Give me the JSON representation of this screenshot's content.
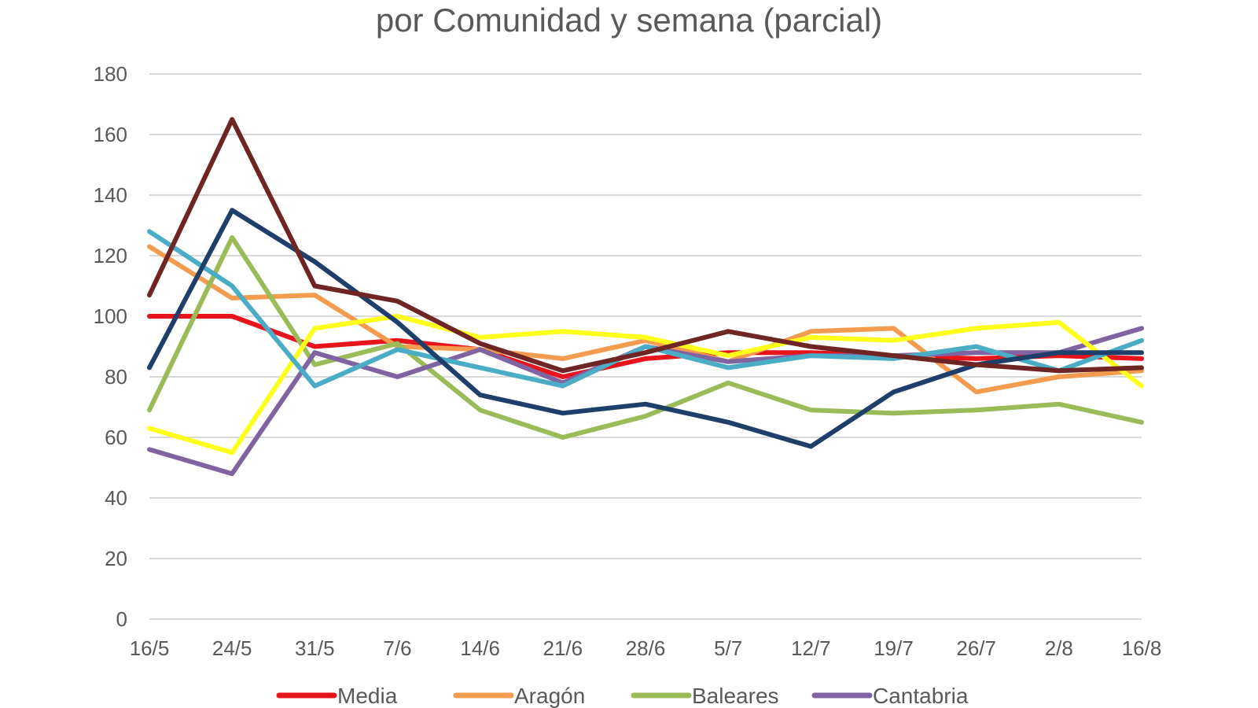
{
  "chart_data": {
    "type": "line",
    "title": "por Comunidad y semana (parcial)",
    "xlabel": "",
    "ylabel": "",
    "ylim": [
      0,
      180
    ],
    "yticks": [
      0,
      20,
      40,
      60,
      80,
      100,
      120,
      140,
      160,
      180
    ],
    "grid": true,
    "legend_position": "bottom",
    "categories": [
      "16/5",
      "24/5",
      "31/5",
      "7/6",
      "14/6",
      "21/6",
      "28/6",
      "5/7",
      "12/7",
      "19/7",
      "26/7",
      "2/8",
      "16/8"
    ],
    "series": [
      {
        "name": "Media",
        "color": "#e8141b",
        "values": [
          100,
          100,
          90,
          92,
          89,
          80,
          86,
          88,
          88,
          87,
          86,
          87,
          86
        ],
        "in_legend": true
      },
      {
        "name": "Aragón",
        "color": "#f39b4f",
        "values": [
          123,
          106,
          107,
          90,
          89,
          86,
          92,
          85,
          95,
          96,
          75,
          80,
          82
        ],
        "in_legend": true
      },
      {
        "name": "Baleares",
        "color": "#9bbb59",
        "values": [
          69,
          126,
          84,
          91,
          69,
          60,
          67,
          78,
          69,
          68,
          69,
          71,
          65
        ],
        "in_legend": true
      },
      {
        "name": "Cantabria",
        "color": "#8064a2",
        "values": [
          56,
          48,
          88,
          80,
          89,
          78,
          90,
          85,
          87,
          87,
          88,
          88,
          96
        ],
        "in_legend": true
      },
      {
        "name": "",
        "color": "#ffff1a",
        "values": [
          63,
          55,
          96,
          100,
          93,
          95,
          93,
          87,
          93,
          92,
          96,
          98,
          77
        ],
        "in_legend": false
      },
      {
        "name": "",
        "color": "#4bacc6",
        "values": [
          128,
          110,
          77,
          89,
          83,
          77,
          90,
          83,
          87,
          86,
          90,
          82,
          92
        ],
        "in_legend": false
      },
      {
        "name": "",
        "color": "#1f3f6b",
        "values": [
          83,
          135,
          118,
          98,
          74,
          68,
          71,
          65,
          57,
          75,
          84,
          88,
          88
        ],
        "in_legend": false
      },
      {
        "name": "",
        "color": "#6e2523",
        "values": [
          107,
          165,
          110,
          105,
          91,
          82,
          88,
          95,
          90,
          87,
          84,
          82,
          83
        ],
        "in_legend": false
      }
    ]
  }
}
